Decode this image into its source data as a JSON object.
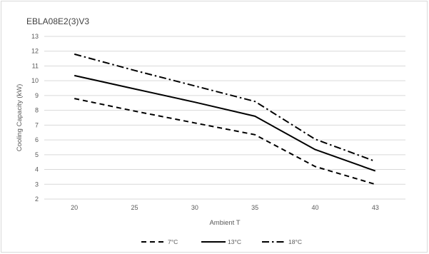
{
  "chart_data": {
    "type": "line",
    "title": "EBLA08E2(3)V3",
    "xlabel": "Ambient T",
    "ylabel": "Cooling Capacity (kW)",
    "categories": [
      "20",
      "25",
      "30",
      "35",
      "40",
      "43"
    ],
    "ylim": [
      2,
      13
    ],
    "yticks": [
      2,
      3,
      4,
      5,
      6,
      7,
      8,
      9,
      10,
      11,
      12,
      13
    ],
    "grid": "horizontal",
    "legend_position": "bottom",
    "series": [
      {
        "name": "7°C",
        "style": "dash",
        "values": [
          8.8,
          7.95,
          7.15,
          6.35,
          4.2,
          3.0
        ]
      },
      {
        "name": "13°C",
        "style": "solid",
        "values": [
          10.35,
          9.45,
          8.55,
          7.6,
          5.35,
          3.9
        ]
      },
      {
        "name": "18°C",
        "style": "dashdot",
        "values": [
          11.8,
          10.7,
          9.65,
          8.6,
          6.05,
          4.55
        ]
      }
    ],
    "colors": {
      "line": "#000000",
      "grid": "#d9d9d9",
      "text": "#595959"
    }
  }
}
